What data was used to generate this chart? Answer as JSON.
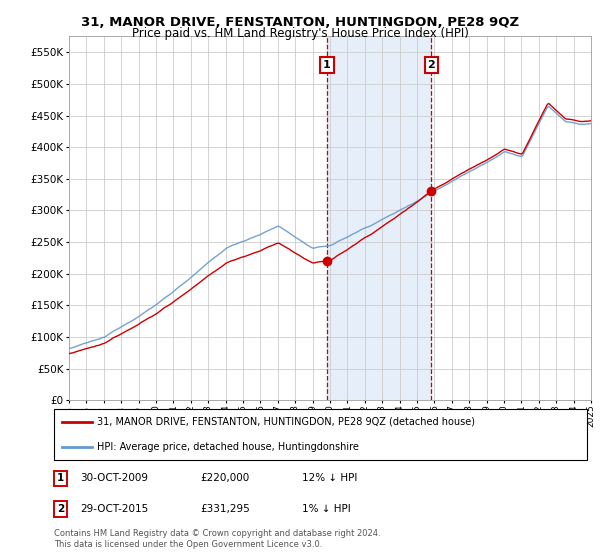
{
  "title": "31, MANOR DRIVE, FENSTANTON, HUNTINGDON, PE28 9QZ",
  "subtitle": "Price paid vs. HM Land Registry's House Price Index (HPI)",
  "background_color": "#ffffff",
  "plot_bg_color": "#ffffff",
  "grid_color": "#cccccc",
  "ylim": [
    0,
    575000
  ],
  "yticks": [
    0,
    50000,
    100000,
    150000,
    200000,
    250000,
    300000,
    350000,
    400000,
    450000,
    500000,
    550000
  ],
  "ytick_labels": [
    "£0",
    "£50K",
    "£100K",
    "£150K",
    "£200K",
    "£250K",
    "£300K",
    "£350K",
    "£400K",
    "£450K",
    "£500K",
    "£550K"
  ],
  "x_start_year": 1995,
  "x_end_year": 2025,
  "xticks": [
    1995,
    1996,
    1997,
    1998,
    1999,
    2000,
    2001,
    2002,
    2003,
    2004,
    2005,
    2006,
    2007,
    2008,
    2009,
    2010,
    2011,
    2012,
    2013,
    2014,
    2015,
    2016,
    2017,
    2018,
    2019,
    2020,
    2021,
    2022,
    2023,
    2024,
    2025
  ],
  "sale1_x": 2009.83,
  "sale1_y": 220000,
  "sale2_x": 2015.83,
  "sale2_y": 331295,
  "shade_color": "#dce9f7",
  "dashed_color": "#cc0000",
  "red_line_color": "#cc0000",
  "blue_line_color": "#6699cc",
  "legend_entry1": "31, MANOR DRIVE, FENSTANTON, HUNTINGDON, PE28 9QZ (detached house)",
  "legend_entry2": "HPI: Average price, detached house, Huntingdonshire",
  "annotation1_date": "30-OCT-2009",
  "annotation1_price": "£220,000",
  "annotation1_hpi": "12% ↓ HPI",
  "annotation2_date": "29-OCT-2015",
  "annotation2_price": "£331,295",
  "annotation2_hpi": "1% ↓ HPI",
  "footer": "Contains HM Land Registry data © Crown copyright and database right 2024.\nThis data is licensed under the Open Government Licence v3.0."
}
